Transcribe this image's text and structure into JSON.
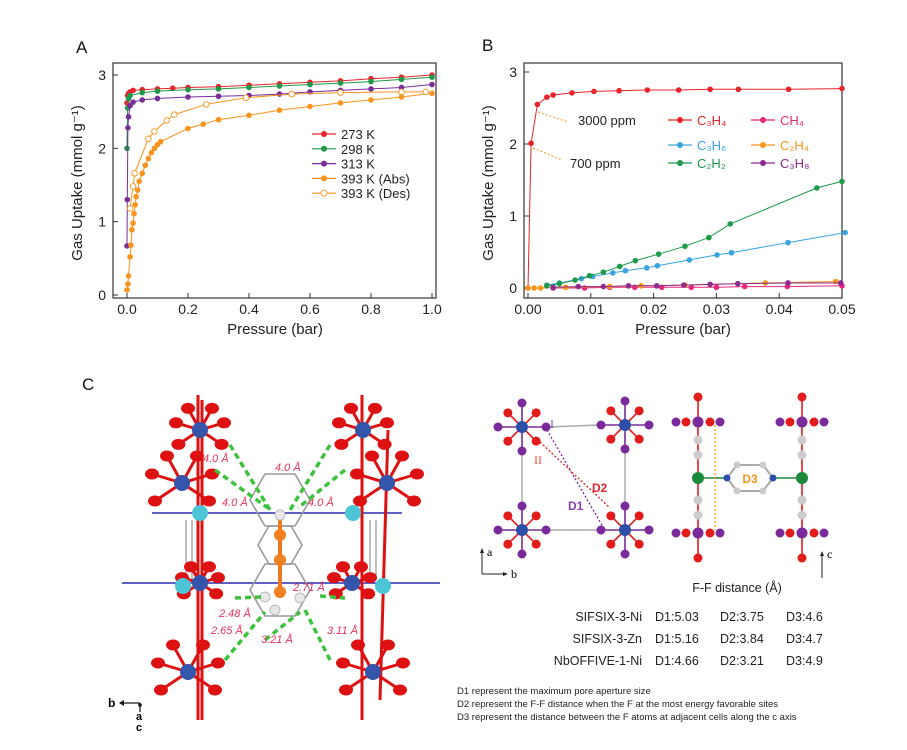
{
  "panels": {
    "a": "A",
    "b": "B",
    "c": "C"
  },
  "chart_data": [
    {
      "type": "line",
      "panel": "A",
      "xlabel": "Pressure (bar)",
      "ylabel": "Gas Uptake (mmol g⁻¹)",
      "xlim": [
        0.0,
        1.0
      ],
      "ylim": [
        0,
        3
      ],
      "xticks": [
        "0.0",
        "0.2",
        "0.4",
        "0.6",
        "0.8",
        "1.0"
      ],
      "yticks": [
        "0",
        "1",
        "2",
        "3"
      ],
      "grid": false,
      "legend_position": "center-right",
      "series": [
        {
          "name": "273 K",
          "color": "#e8242a",
          "marker": "filled-circle",
          "x": [
            0,
            0.002,
            0.005,
            0.01,
            0.02,
            0.05,
            0.1,
            0.15,
            0.2,
            0.3,
            0.4,
            0.5,
            0.6,
            0.7,
            0.8,
            0.9,
            1.0
          ],
          "y": [
            2.62,
            2.72,
            2.75,
            2.77,
            2.79,
            2.8,
            2.81,
            2.82,
            2.83,
            2.84,
            2.86,
            2.88,
            2.9,
            2.92,
            2.95,
            2.97,
            3.0
          ]
        },
        {
          "name": "298 K",
          "color": "#1e9a4a",
          "marker": "filled-circle",
          "x": [
            0,
            0.002,
            0.005,
            0.01,
            0.05,
            0.1,
            0.2,
            0.3,
            0.4,
            0.5,
            0.6,
            0.7,
            0.8,
            0.9,
            1.0
          ],
          "y": [
            2.0,
            2.55,
            2.68,
            2.72,
            2.76,
            2.78,
            2.8,
            2.81,
            2.83,
            2.85,
            2.87,
            2.89,
            2.91,
            2.94,
            2.97
          ]
        },
        {
          "name": "313 K",
          "color": "#7a2e9a",
          "marker": "filled-circle",
          "x": [
            0,
            0.001,
            0.003,
            0.005,
            0.01,
            0.02,
            0.05,
            0.1,
            0.2,
            0.3,
            0.4,
            0.5,
            0.6,
            0.7,
            0.8,
            0.9,
            1.0
          ],
          "y": [
            0.67,
            1.3,
            2.28,
            2.43,
            2.58,
            2.63,
            2.66,
            2.68,
            2.7,
            2.71,
            2.72,
            2.74,
            2.77,
            2.79,
            2.81,
            2.83,
            2.87
          ]
        },
        {
          "name": "393 K (Abs)",
          "color": "#f7941d",
          "marker": "filled-circle",
          "x": [
            0,
            0.003,
            0.005,
            0.01,
            0.013,
            0.016,
            0.02,
            0.023,
            0.027,
            0.03,
            0.035,
            0.04,
            0.05,
            0.06,
            0.07,
            0.08,
            0.09,
            0.1,
            0.11,
            0.2,
            0.25,
            0.3,
            0.4,
            0.5,
            0.6,
            0.7,
            0.8,
            0.9,
            1.0
          ],
          "y": [
            0.07,
            0.15,
            0.26,
            0.52,
            0.68,
            0.89,
            0.98,
            1.11,
            1.23,
            1.34,
            1.43,
            1.55,
            1.66,
            1.77,
            1.86,
            1.94,
            2.0,
            2.05,
            2.09,
            2.27,
            2.33,
            2.39,
            2.45,
            2.52,
            2.57,
            2.62,
            2.66,
            2.7,
            2.75
          ]
        },
        {
          "name": "393 K (Des)",
          "color": "#f7941d",
          "marker": "open-circle",
          "x": [
            0.01,
            0.02,
            0.025,
            0.07,
            0.09,
            0.13,
            0.155,
            0.26,
            0.39,
            0.54,
            0.7,
            0.9,
            0.98
          ],
          "y": [
            1.18,
            1.48,
            1.66,
            2.13,
            2.23,
            2.38,
            2.46,
            2.6,
            2.69,
            2.74,
            2.76,
            2.77,
            2.77
          ]
        }
      ]
    },
    {
      "type": "line",
      "panel": "B",
      "xlabel": "Pressure (bar)",
      "ylabel": "Gas Uptake (mmol g⁻¹)",
      "xlim": [
        0.0,
        0.05
      ],
      "ylim": [
        0,
        3
      ],
      "xticks": [
        "0.00",
        "0.01",
        "0.02",
        "0.03",
        "0.04",
        "0.05"
      ],
      "yticks": [
        "0",
        "1",
        "2",
        "3"
      ],
      "grid": false,
      "legend_position": "center-right",
      "annotations": [
        "3000 ppm",
        "700 ppm"
      ],
      "series": [
        {
          "name": "C₃H₄",
          "color": "#e8242a",
          "x": [
            0,
            0.0005,
            0.0015,
            0.003,
            0.004,
            0.007,
            0.0105,
            0.0145,
            0.019,
            0.024,
            0.029,
            0.0335,
            0.0415,
            0.05
          ],
          "y": [
            0,
            2.01,
            2.55,
            2.65,
            2.68,
            2.71,
            2.73,
            2.74,
            2.75,
            2.75,
            2.76,
            2.76,
            2.76,
            2.77
          ]
        },
        {
          "name": "CH₄",
          "color": "#e6287d",
          "x": [
            0.004,
            0.009,
            0.013,
            0.017,
            0.0213,
            0.026,
            0.03,
            0.0345,
            0.0413,
            0.05
          ],
          "y": [
            0.0,
            0.0,
            0.01,
            0.01,
            0.01,
            0.01,
            0.01,
            0.02,
            0.02,
            0.03
          ]
        },
        {
          "name": "C₃H₆",
          "color": "#3ba3e0",
          "x": [
            0.003,
            0.005,
            0.0085,
            0.0103,
            0.0135,
            0.0155,
            0.0189,
            0.0206,
            0.0257,
            0.0301,
            0.0324,
            0.0414,
            0.0505
          ],
          "y": [
            0.04,
            0.07,
            0.13,
            0.16,
            0.21,
            0.24,
            0.28,
            0.31,
            0.39,
            0.46,
            0.49,
            0.63,
            0.77
          ]
        },
        {
          "name": "C₂H₄",
          "color": "#f7941d",
          "x": [
            0,
            0.001,
            0.002,
            0.006,
            0.013,
            0.018,
            0.025,
            0.029,
            0.0378,
            0.049
          ],
          "y": [
            0,
            0,
            0.0,
            0.01,
            0.02,
            0.03,
            0.04,
            0.05,
            0.07,
            0.09
          ]
        },
        {
          "name": "C₂H₂",
          "color": "#1e9a4a",
          "x": [
            0.003,
            0.005,
            0.0075,
            0.0098,
            0.012,
            0.0146,
            0.0171,
            0.0208,
            0.025,
            0.0288,
            0.0322,
            0.046,
            0.05
          ],
          "y": [
            0.03,
            0.06,
            0.11,
            0.17,
            0.22,
            0.3,
            0.38,
            0.47,
            0.58,
            0.7,
            0.89,
            1.39,
            1.48
          ]
        },
        {
          "name": "C₃H₈",
          "color": "#8e2b8e",
          "x": [
            0.004,
            0.008,
            0.012,
            0.016,
            0.0205,
            0.0248,
            0.029,
            0.0334,
            0.0414,
            0.0498
          ],
          "y": [
            0.01,
            0.02,
            0.02,
            0.03,
            0.03,
            0.04,
            0.05,
            0.06,
            0.07,
            0.07
          ]
        }
      ]
    }
  ],
  "structure_left": {
    "distance_labels": [
      "4.0 Å",
      "4.0 Å",
      "4.0 Å",
      "4.0 Å",
      "2.71 Å",
      "2.48 Å",
      "2.65 Å",
      "3.21 Å",
      "3.11 Å"
    ],
    "axes": {
      "b": "b",
      "a": "a",
      "c": "c"
    }
  },
  "structure_right": {
    "site_labels": {
      "I": "I",
      "II": "II"
    },
    "distance_labels": {
      "d1": "D1",
      "d2": "D2",
      "d3": "D3"
    },
    "axes": {
      "a": "a",
      "b": "b",
      "c": "c"
    }
  },
  "table": {
    "title": "F-F distance (Å)",
    "rows": [
      {
        "name": "SIFSIX-3-Ni",
        "d1": "D1:5.03",
        "d2": "D2:3.75",
        "d3": "D3:4.6"
      },
      {
        "name": "SIFSIX-3-Zn",
        "d1": "D1:5.16",
        "d2": "D2:3.84",
        "d3": "D3:4.7"
      },
      {
        "name": "NbOFFIVE-1-Ni",
        "d1": "D1:4.66",
        "d2": "D2:3.21",
        "d3": "D3:4.9"
      }
    ]
  },
  "notes": [
    "D1 represent the maximum pore aperture size",
    "D2 represent the F-F distance when the F at the most energy favorable sites",
    "D3 represent the distance between  the F atoms at adjacent cells along the c axis"
  ],
  "colors": {
    "red": "#e8242a",
    "green": "#1e9a4a",
    "purple": "#7a2e9a",
    "orange": "#f7941d",
    "blue": "#3ba3e0",
    "magenta": "#e6287d",
    "metal_blue": "#3355aa",
    "fluorine_red": "#dd1111",
    "cyan": "#4cc6d6"
  }
}
